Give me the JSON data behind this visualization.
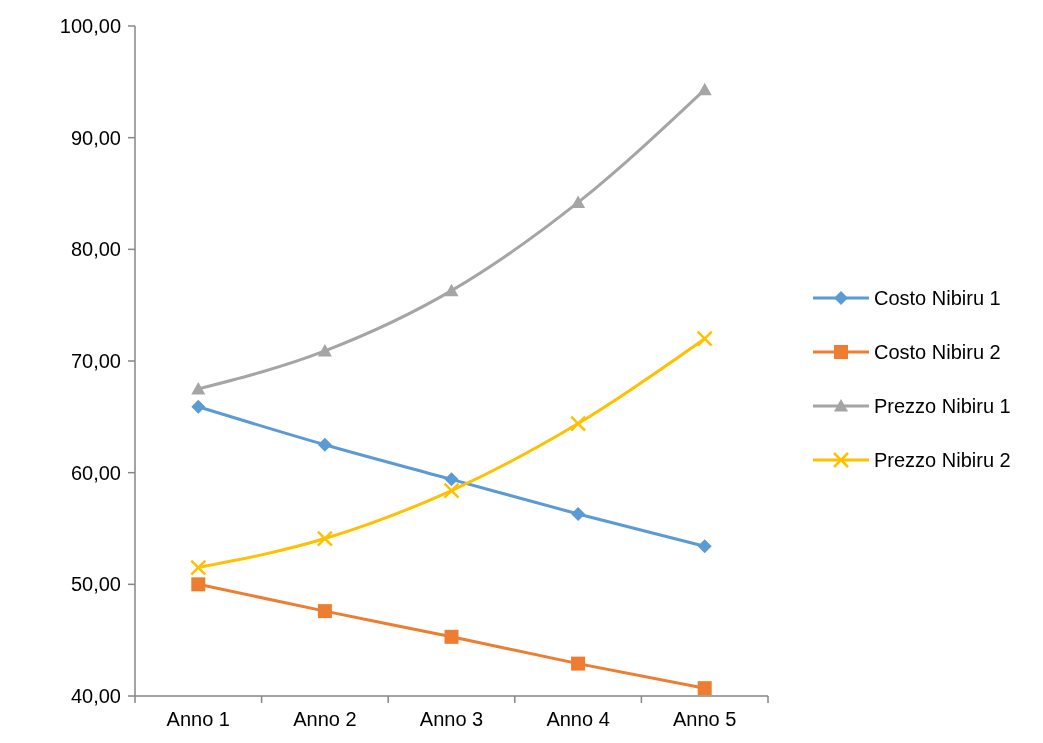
{
  "chart_data": {
    "type": "line",
    "categories": [
      "Anno 1",
      "Anno 2",
      "Anno 3",
      "Anno 4",
      "Anno 5"
    ],
    "ylim": [
      40,
      100
    ],
    "yticks": [
      {
        "value": 40,
        "label": "40,00"
      },
      {
        "value": 50,
        "label": "50,00"
      },
      {
        "value": 60,
        "label": "60,00"
      },
      {
        "value": 70,
        "label": "70,00"
      },
      {
        "value": 80,
        "label": "80,00"
      },
      {
        "value": 90,
        "label": "90,00"
      },
      {
        "value": 100,
        "label": "100,00"
      }
    ],
    "grid": false,
    "legend": "right",
    "series": [
      {
        "name": "Costo Nibiru 1",
        "color": "#5b9bd5",
        "marker": "diamond",
        "values": [
          65.9,
          62.5,
          59.4,
          56.3,
          53.4
        ]
      },
      {
        "name": "Costo Nibiru 2",
        "color": "#ed7d31",
        "marker": "square",
        "values": [
          50.0,
          47.6,
          45.3,
          42.9,
          40.7
        ]
      },
      {
        "name": "Prezzo Nibiru 1",
        "color": "#a5a5a5",
        "marker": "triangle",
        "values": [
          67.5,
          70.9,
          76.3,
          84.2,
          94.3
        ]
      },
      {
        "name": "Prezzo Nibiru 2",
        "color": "#ffc000",
        "marker": "cross",
        "values": [
          51.5,
          54.1,
          58.4,
          64.4,
          72.0
        ]
      }
    ]
  }
}
